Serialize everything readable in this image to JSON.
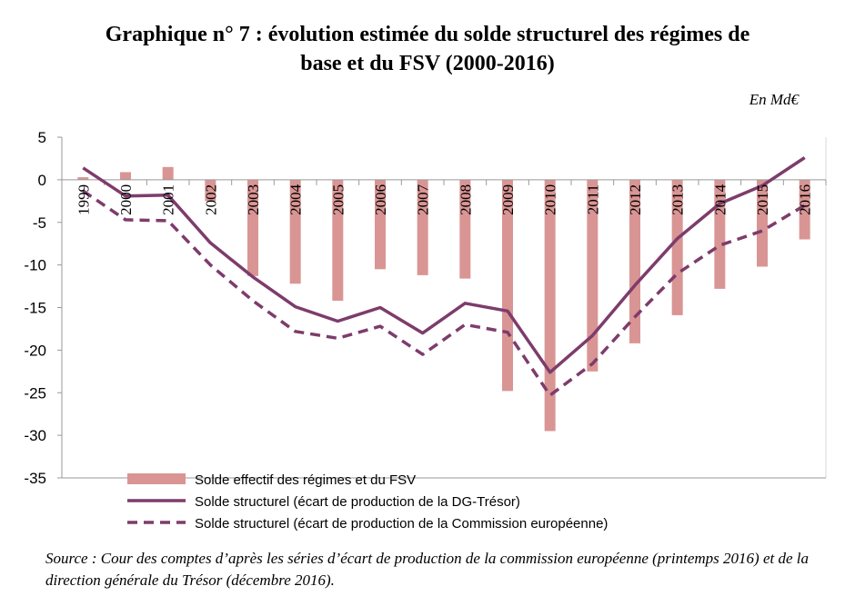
{
  "title_line1": "Graphique n° 7 : évolution estimée du solde structurel des régimes de",
  "title_line2": "base et du FSV (2000-2016)",
  "unit": "En Md€",
  "source": "Source : Cour des comptes d’après les séries d’écart de production de la commission européenne (printemps 2016) et de la direction générale du Trésor (décembre 2016).",
  "colors": {
    "bar": "#d99594",
    "line": "#7d3c6b",
    "axis": "#999999"
  },
  "chart_data": {
    "type": "bar",
    "categories": [
      "1999",
      "2000",
      "2001",
      "2002",
      "2003",
      "2004",
      "2005",
      "2006",
      "2007",
      "2008",
      "2009",
      "2010",
      "2011",
      "2012",
      "2013",
      "2014",
      "2015",
      "2016"
    ],
    "ylim": [
      -35,
      5
    ],
    "yticks": [
      5,
      0,
      -5,
      -10,
      -15,
      -20,
      -25,
      -30,
      -35
    ],
    "grid": false,
    "legend_position": "bottom",
    "series": [
      {
        "name": "Solde effectif des régimes et du FSV",
        "kind": "bar",
        "values": [
          0.3,
          0.9,
          1.5,
          -2.5,
          -11.3,
          -12.2,
          -14.2,
          -10.5,
          -11.2,
          -11.6,
          -24.8,
          -29.5,
          -22.5,
          -19.2,
          -15.9,
          -12.8,
          -10.2,
          -7.0
        ]
      },
      {
        "name": "Solde structurel  (écart de production de la DG-Trésor)",
        "kind": "line-solid",
        "values": [
          1.4,
          -1.9,
          -1.8,
          -7.4,
          -11.4,
          -14.9,
          -16.6,
          -15.0,
          -18.0,
          -14.5,
          -15.4,
          -22.6,
          -18.3,
          -12.4,
          -6.9,
          -2.8,
          -0.7,
          2.6
        ]
      },
      {
        "name": "Solde structurel  (écart de production de la Commission européenne)",
        "kind": "line-dashed",
        "values": [
          -1.3,
          -4.7,
          -4.8,
          -10.0,
          -14.2,
          -17.8,
          -18.6,
          -17.2,
          -20.5,
          -17.0,
          -17.9,
          -25.3,
          -21.6,
          -16.1,
          -11.0,
          -7.7,
          -6.0,
          -3.0
        ]
      }
    ]
  }
}
